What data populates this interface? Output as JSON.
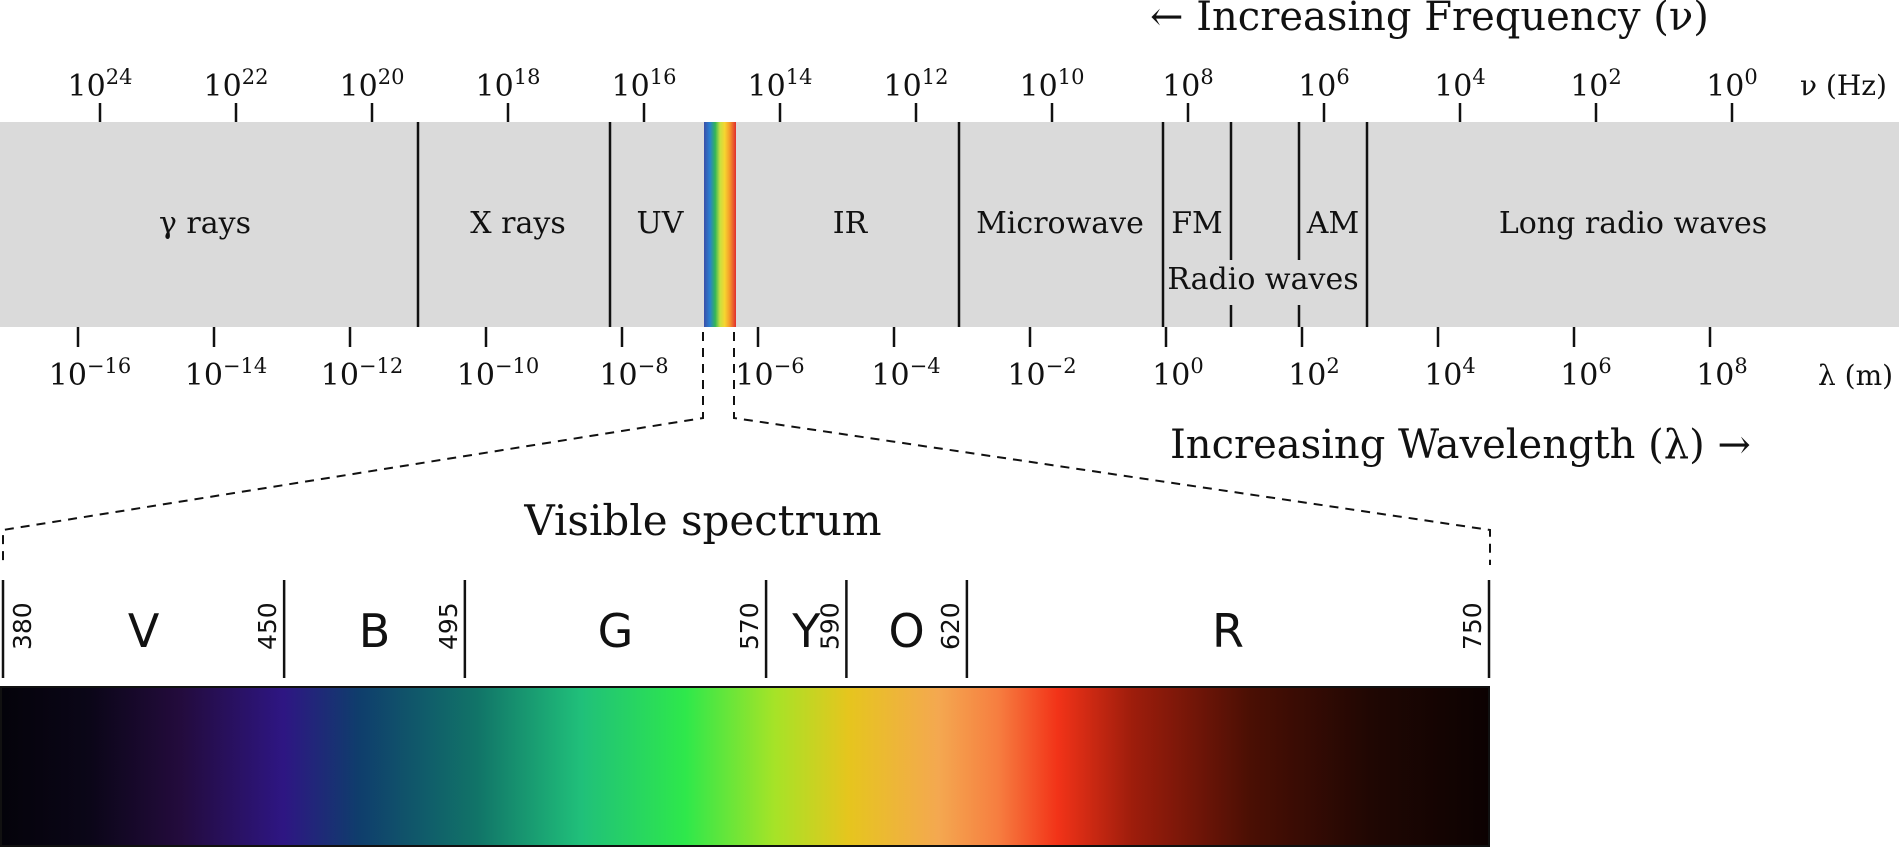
{
  "frequency": {
    "direction_label": "← Increasing Frequency (ν)",
    "unit_label": "ν (Hz)",
    "exponents": [
      "24",
      "22",
      "20",
      "18",
      "16",
      "14",
      "12",
      "10",
      "8",
      "6",
      "4",
      "2",
      "0"
    ],
    "base": "10"
  },
  "wavelength": {
    "direction_label": "Increasing Wavelength (λ) →",
    "unit_label": "λ (m)",
    "exponents": [
      "−16",
      "−14",
      "−12",
      "−10",
      "−8",
      "−6",
      "−4",
      "−2",
      "0",
      "2",
      "4",
      "6",
      "8"
    ],
    "base": "10"
  },
  "bands": [
    {
      "id": "gamma",
      "label": "γ rays"
    },
    {
      "id": "xray",
      "label": "X rays"
    },
    {
      "id": "uv",
      "label": "UV"
    },
    {
      "id": "ir",
      "label": "IR"
    },
    {
      "id": "microwave",
      "label": "Microwave"
    },
    {
      "id": "fm",
      "label": "FM"
    },
    {
      "id": "am",
      "label": "AM"
    },
    {
      "id": "long-radio",
      "label": "Long radio waves"
    }
  ],
  "radio_waves_label": "Radio waves",
  "visible": {
    "title": "Visible spectrum",
    "boundaries": [
      "380",
      "450",
      "495",
      "570",
      "590",
      "620",
      "750"
    ],
    "colors": [
      "V",
      "B",
      "G",
      "Y",
      "O",
      "R"
    ]
  }
}
